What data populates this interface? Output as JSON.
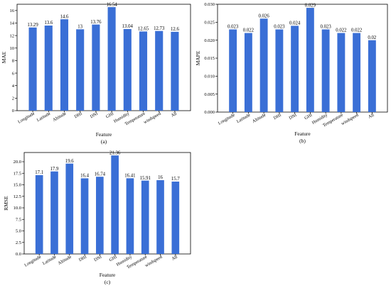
{
  "chart_data": [
    {
      "type": "bar",
      "panel_label": "(a)",
      "xlabel": "Feature",
      "ylabel": "MAE",
      "categories": [
        "Longitude",
        "Latitude",
        "Altitude",
        "DHI",
        "DNI",
        "GHI",
        "Humidity",
        "Temperature",
        "windspeed",
        "All"
      ],
      "values": [
        13.29,
        13.6,
        14.6,
        13,
        13.76,
        16.54,
        13.04,
        12.65,
        12.73,
        12.6
      ],
      "value_labels": [
        "13.29",
        "13.6",
        "14.6",
        "13",
        "13.76",
        "16.54",
        "13.04",
        "12.65",
        "12.73",
        "12.6"
      ],
      "ylim": [
        0,
        17
      ],
      "yticks": [
        0,
        2,
        4,
        6,
        8,
        10,
        12,
        14,
        16
      ],
      "ytick_labels": [
        "0",
        "2",
        "4",
        "6",
        "8",
        "10",
        "12",
        "14",
        "16"
      ],
      "bar_color": "#3a6fd6",
      "grid": false
    },
    {
      "type": "bar",
      "panel_label": "(b)",
      "xlabel": "Feature",
      "ylabel": "MAPE",
      "categories": [
        "Longitude",
        "Latitude",
        "Altitude",
        "DHI",
        "DNI",
        "GHI",
        "Humidity",
        "Temperature",
        "windspeed",
        "All"
      ],
      "values": [
        0.023,
        0.022,
        0.026,
        0.023,
        0.024,
        0.029,
        0.023,
        0.022,
        0.022,
        0.02
      ],
      "value_labels": [
        "0.023",
        "0.022",
        "0.026",
        "0.023",
        "0.024",
        "0.029",
        "0.023",
        "0.022",
        "0.022",
        "0.02"
      ],
      "ylim": [
        0,
        0.03
      ],
      "yticks": [
        0,
        0.005,
        0.01,
        0.015,
        0.02,
        0.025,
        0.03
      ],
      "ytick_labels": [
        "0.000",
        "0.005",
        "0.010",
        "0.015",
        "0.020",
        "0.025",
        "0.030"
      ],
      "bar_color": "#3a6fd6",
      "grid": false
    },
    {
      "type": "bar",
      "panel_label": "(c)",
      "xlabel": "Feature",
      "ylabel": "RMSE",
      "categories": [
        "Longitude",
        "Latitude",
        "Altitude",
        "DHI",
        "DNI",
        "GHI",
        "Humidity",
        "Temperature",
        "windspeed",
        "All"
      ],
      "values": [
        17.1,
        17.9,
        19.6,
        16.4,
        16.74,
        21.36,
        16.41,
        15.91,
        16,
        15.7
      ],
      "value_labels": [
        "17.1",
        "17.9",
        "19.6",
        "16.4",
        "16.74",
        "21.36",
        "16.41",
        "15.91",
        "16",
        "15.7"
      ],
      "ylim": [
        0,
        22
      ],
      "yticks": [
        0,
        2.5,
        5,
        7.5,
        10,
        12.5,
        15,
        17.5,
        20
      ],
      "ytick_labels": [
        "0.0",
        "2.5",
        "5.0",
        "7.5",
        "10.0",
        "12.5",
        "15.0",
        "17.5",
        "20.0"
      ],
      "bar_color": "#3a6fd6",
      "grid": false
    }
  ]
}
